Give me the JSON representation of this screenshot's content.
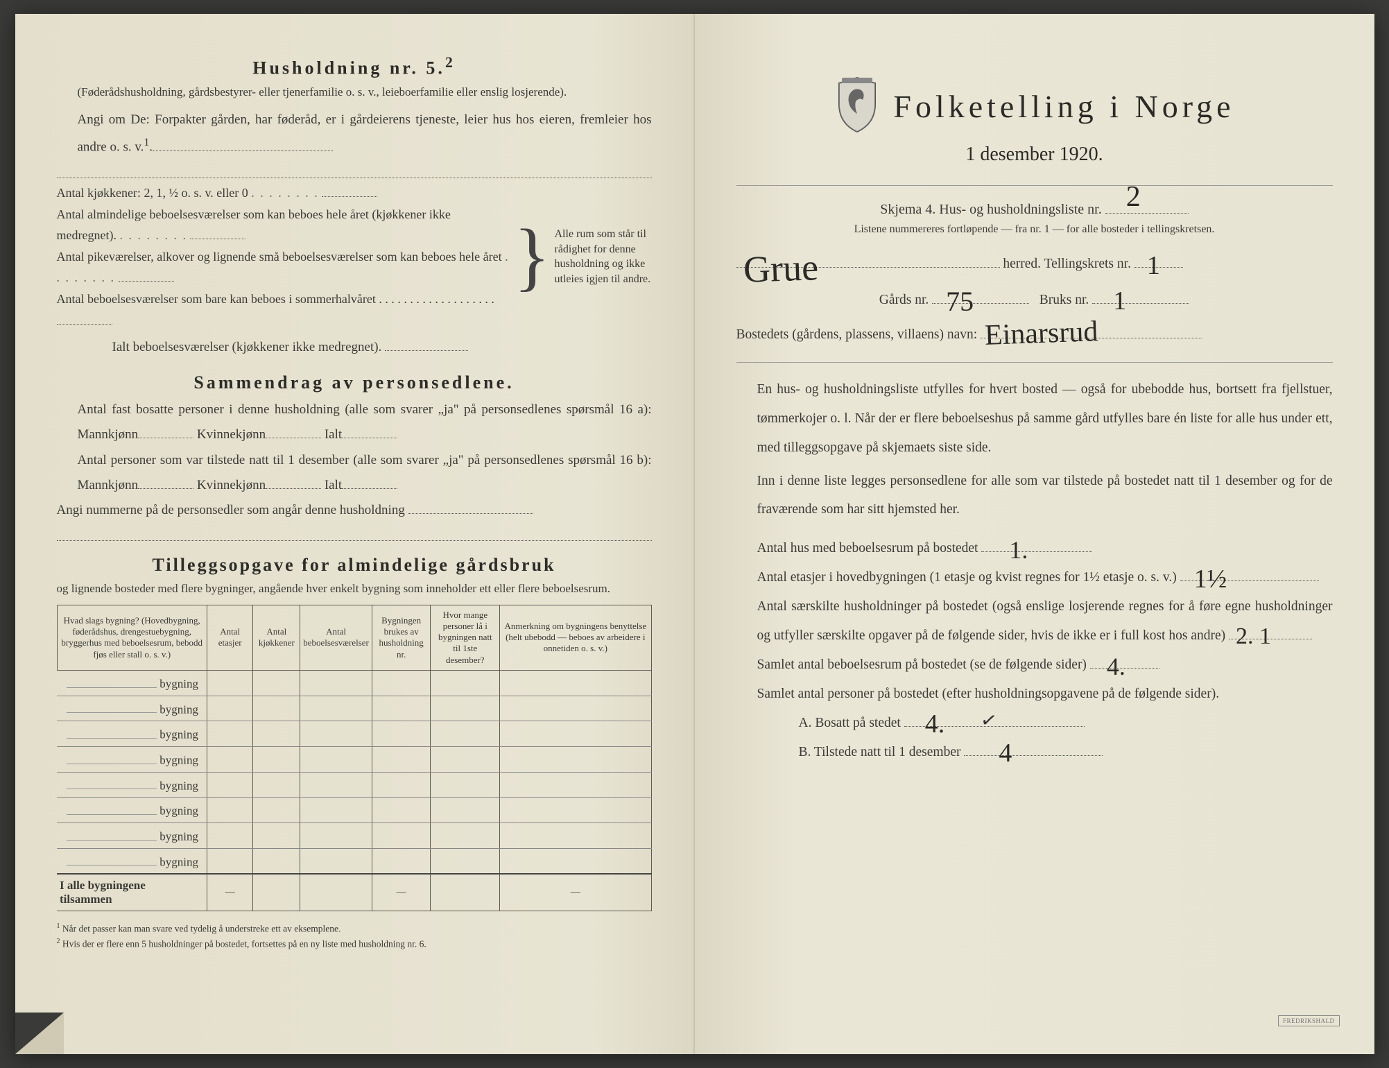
{
  "left": {
    "heading": "Husholdning nr. 5.",
    "heading_sup": "2",
    "sub1": "(Føderådshusholdning, gårdsbestyrer- eller tjenerfamilie o. s. v., leieboerfamilie eller enslig losjerende).",
    "para1": "Angi om De: Forpakter gården, har føderåd, er i gårdeierens tjeneste, leier hus hos eieren, fremleier hos andre o. s. v.",
    "kjokken_line": "Antal kjøkkener: 2, 1, ½ o. s. v. eller 0",
    "brace_items": [
      "Antal almindelige beboelsesværelser som kan beboes hele året (kjøkkener ikke medregnet).",
      "Antal pikeværelser, alkover og lignende små beboelsesværelser som kan beboes hele året",
      "Antal beboelsesværelser som bare kan beboes i sommerhalvåret"
    ],
    "brace_right": "Alle rum som står til rådighet for denne husholdning og ikke utleies igjen til andre.",
    "ialt_line": "Ialt beboelsesværelser (kjøkkener ikke medregnet).",
    "summary_heading": "Sammendrag av personsedlene.",
    "sum1a": "Antal fast bosatte personer i denne husholdning (alle som svarer „ja\" på personsedlenes spørsmål 16 a): Mannkjønn",
    "sum1b": "Kvinnekjønn",
    "sum1c": "Ialt",
    "sum2a": "Antal personer som var tilstede natt til 1 desember (alle som svarer „ja\" på personsedlenes spørsmål 16 b): Mannkjønn",
    "angi_line": "Angi nummerne på de personsedler som angår denne husholdning",
    "tillegg_heading": "Tilleggsopgave for almindelige gårdsbruk",
    "tillegg_sub": "og lignende bosteder med flere bygninger, angående hver enkelt bygning som inneholder ett eller flere beboelsesrum.",
    "table": {
      "headers": [
        "Hvad slags bygning?\n(Hovedbygning, føderådshus, drengestuebygning, bryggerhus med beboelsesrum, bebodd fjøs eller stall o. s. v.)",
        "Antal etasjer",
        "Antal kjøkkener",
        "Antal beboelsesværelser",
        "Bygningen brukes av husholdning nr.",
        "Hvor mange personer lå i bygningen natt til 1ste desember?",
        "Anmerkning om bygningens benyttelse (helt ubebodd — beboes av arbeidere i onnetiden o. s. v.)"
      ],
      "row_label": "bygning",
      "row_count": 8,
      "total_label": "I alle bygningene tilsammen"
    },
    "footnotes": [
      "Når det passer kan man svare ved tydelig å understreke ett av eksemplene.",
      "Hvis der er flere enn 5 husholdninger på bostedet, fortsettes på en ny liste med husholdning nr. 6."
    ]
  },
  "right": {
    "title": "Folketelling i Norge",
    "date": "1 desember 1920.",
    "skjema": "Skjema 4.   Hus- og husholdningsliste nr.",
    "liste_nr": "2",
    "liste_note": "Listene nummereres fortløpende — fra nr. 1 — for alle bosteder i tellingskretsen.",
    "herred_label": "herred.   Tellingskrets nr.",
    "herred_value": "Grue",
    "krets_value": "1",
    "gards_label": "Gårds nr.",
    "gards_value": "75",
    "bruks_label": "Bruks nr.",
    "bruks_value": "1",
    "bosted_label": "Bostedets (gårdens, plassens, villaens) navn:",
    "bosted_value": "Einarsrud",
    "para1": "En hus- og husholdningsliste utfylles for hvert bosted — også for ubebodde hus, bortsett fra fjellstuer, tømmerkojer o. l.  Når der er flere beboelseshus på samme gård utfylles bare én liste for alle hus under ett, med tilleggsopgave på skjemaets siste side.",
    "para2": "Inn i denne liste legges personsedlene for alle som var tilstede på bostedet natt til 1 desember og for de fraværende som har sitt hjemsted her.",
    "q1": "Antal hus med beboelsesrum på bostedet",
    "q1_value": "1.",
    "q2a": "Antal etasjer i hovedbygningen (1 etasje og kvist regnes for 1½ etasje o. s. v.)",
    "q2_value": "1½",
    "q3": "Antal særskilte husholdninger på bostedet (også enslige losjerende regnes for å føre egne husholdninger og utfyller særskilte opgaver på de følgende sider, hvis de ikke er i full kost hos andre)",
    "q3_value": "2. 1",
    "q4": "Samlet antal beboelsesrum på bostedet (se de følgende sider)",
    "q4_value": "4.",
    "q5": "Samlet antal personer på bostedet (efter husholdningsopgavene på de følgende sider).",
    "qA": "A.  Bosatt på stedet",
    "qA_value": "4.",
    "qA_check": "✓",
    "qB": "B.  Tilstede natt til 1 desember",
    "qB_value": "4",
    "stamp": "FREDRIKSHALD"
  }
}
